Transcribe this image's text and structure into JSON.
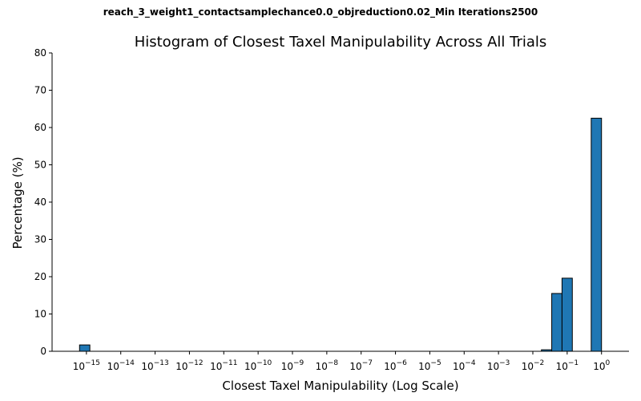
{
  "suptitle": "reach_3_weight1_contactsamplechance0.0_objreduction0.02_Min Iterations2500",
  "chart_data": {
    "type": "bar",
    "title": "Histogram of Closest Taxel Manipulability Across All Trials",
    "xlabel": "Closest Taxel Manipulability (Log Scale)",
    "ylabel": "Percentage (%)",
    "x_scale": "log",
    "xlim_log10": [
      -16,
      0.8
    ],
    "ylim": [
      0,
      80
    ],
    "yticks": [
      0,
      10,
      20,
      30,
      40,
      50,
      60,
      70,
      80
    ],
    "xtick_exponents": [
      -15,
      -14,
      -13,
      -12,
      -11,
      -10,
      -9,
      -8,
      -7,
      -6,
      -5,
      -4,
      -3,
      -2,
      -1,
      0
    ],
    "bar_color": "#1f77b4",
    "bins_log10": [
      {
        "from": -15.2,
        "to": -14.9,
        "value": 1.7
      },
      {
        "from": -1.75,
        "to": -1.45,
        "value": 0.4
      },
      {
        "from": -1.45,
        "to": -1.15,
        "value": 15.5
      },
      {
        "from": -1.15,
        "to": -0.85,
        "value": 19.6
      },
      {
        "from": -0.3,
        "to": 0.0,
        "value": 62.5
      }
    ]
  }
}
